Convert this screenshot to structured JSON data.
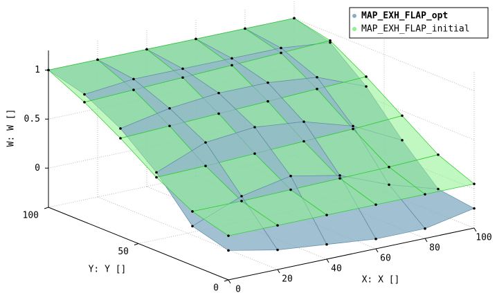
{
  "chart_data": {
    "type": "surface",
    "xlabel": "X: X []",
    "ylabel": "Y: Y []",
    "zlabel": "W: W []",
    "x": [
      0,
      20,
      40,
      60,
      80,
      100
    ],
    "y": [
      0,
      20,
      40,
      60,
      80,
      100
    ],
    "series": [
      {
        "name": "MAP_EXH_FLAP_opt",
        "color": "#86aec4",
        "edge": "#5d8aa4",
        "values": [
          [
            -0.1,
            -0.2,
            -0.25,
            -0.3,
            -0.3,
            -0.2
          ],
          [
            0.0,
            0.2,
            0.3,
            0.2,
            0.0,
            -0.15
          ],
          [
            0.4,
            0.6,
            0.65,
            0.6,
            0.45,
            0.2
          ],
          [
            0.7,
            0.8,
            0.85,
            0.85,
            0.8,
            0.6
          ],
          [
            0.9,
            0.95,
            0.95,
            0.95,
            0.95,
            0.9
          ],
          [
            1,
            1,
            1,
            1,
            1,
            1
          ]
        ]
      },
      {
        "name": "MAP_EXH_FLAP_initial",
        "color": "#8ef08e",
        "edge": "#22cc22",
        "values": [
          [
            0.05,
            0.05,
            0.05,
            0.05,
            0.05,
            0.05
          ],
          [
            0.15,
            0.15,
            0.16,
            0.17,
            0.18,
            0.2
          ],
          [
            0.35,
            0.36,
            0.38,
            0.4,
            0.42,
            0.45
          ],
          [
            0.6,
            0.62,
            0.64,
            0.66,
            0.68,
            0.7
          ],
          [
            0.82,
            0.84,
            0.86,
            0.88,
            0.9,
            0.92
          ],
          [
            1,
            1,
            1,
            1,
            1,
            1
          ]
        ]
      }
    ],
    "xlim": [
      0,
      100
    ],
    "ylim": [
      0,
      100
    ],
    "zlim": [
      -0.4,
      1.2
    ],
    "xticks": [
      0,
      20,
      40,
      60,
      80,
      100
    ],
    "yticks": [
      0,
      50,
      100
    ],
    "zticks": [
      0,
      0.5,
      1
    ],
    "grid": true,
    "legend": "upper right"
  }
}
